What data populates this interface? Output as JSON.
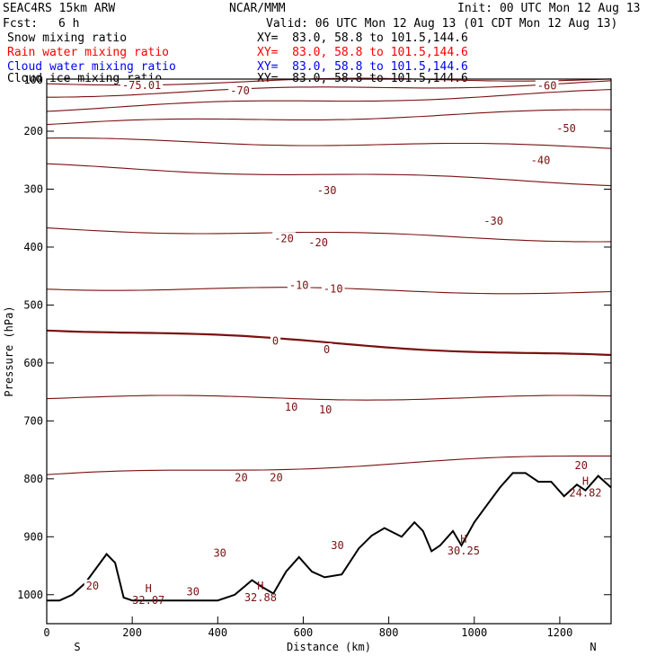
{
  "header": {
    "model": "SEAC4RS 15km ARW",
    "org": "NCAR/MMM",
    "init": "Init: 00 UTC Mon 12 Aug 13",
    "fcst_label": "Fcst:",
    "fcst_value": "6 h",
    "valid": "Valid: 06 UTC Mon 12 Aug 13 (01 CDT Mon 12 Aug 13)"
  },
  "fields": [
    {
      "name": "Snow mixing ratio",
      "xy": "XY=  83.0, 58.8 to 101.5,144.6",
      "color": "#000000"
    },
    {
      "name": "Rain water mixing ratio",
      "xy": "XY=  83.0, 58.8 to 101.5,144.6",
      "color": "#ff0000"
    },
    {
      "name": "Cloud water mixing ratio",
      "xy": "XY=  83.0, 58.8 to 101.5,144.6",
      "color": "#0000ff"
    },
    {
      "name": "Cloud ice mixing ratio",
      "xy": "XY=  83.0, 58.8 to 101.5,144.6",
      "color": "#000000"
    }
  ],
  "colors": {
    "contour": "#7a1010",
    "terrain": "#000000",
    "frame": "#000000"
  },
  "chart_data": {
    "type": "line",
    "xlabel": "Distance (km)",
    "ylabel": "Pressure (hPa)",
    "xlim": [
      0,
      1320
    ],
    "ylim": [
      1050,
      110
    ],
    "xticks": [
      0,
      200,
      400,
      600,
      800,
      1000,
      1200
    ],
    "yticks": [
      200,
      300,
      400,
      500,
      600,
      700,
      800,
      900,
      1000
    ],
    "ytick_first_label": "100",
    "end_labels": {
      "left": "S",
      "right": "N"
    },
    "temperature_contours_pressure_at_ends": [
      {
        "temp": -75.01,
        "p_start": 118,
        "p_end": 108
      },
      {
        "temp": -70,
        "p_start": 138,
        "p_end": 115
      },
      {
        "temp": -60,
        "p_start": 162,
        "p_end": 132
      },
      {
        "temp": -50,
        "p_start": 188,
        "p_end": 165
      },
      {
        "temp": -40,
        "p_start": 215,
        "p_end": 228
      },
      {
        "temp": -30,
        "p_start": 260,
        "p_end": 290
      },
      {
        "temp": -20,
        "p_start": 368,
        "p_end": 388
      },
      {
        "temp": -10,
        "p_start": 470,
        "p_end": 478
      },
      {
        "temp": 0,
        "p_start": 540,
        "p_end": 590
      },
      {
        "temp": 10,
        "p_start": 660,
        "p_end": 660
      },
      {
        "temp": 20,
        "p_start": 795,
        "p_end": 760
      }
    ],
    "contour_labels": [
      {
        "text": "-75.01",
        "x": 222,
        "p": 121
      },
      {
        "text": "-70",
        "x": 452,
        "p": 130
      },
      {
        "text": "-60",
        "x": 1170,
        "p": 122
      },
      {
        "text": "-50",
        "x": 1215,
        "p": 195
      },
      {
        "text": "-40",
        "x": 1155,
        "p": 250
      },
      {
        "text": "-30",
        "x": 655,
        "p": 302
      },
      {
        "text": "-30",
        "x": 1045,
        "p": 355
      },
      {
        "text": "-20",
        "x": 555,
        "p": 385
      },
      {
        "text": "-20",
        "x": 635,
        "p": 392
      },
      {
        "text": "-10",
        "x": 590,
        "p": 466
      },
      {
        "text": "-10",
        "x": 670,
        "p": 472
      },
      {
        "text": "0",
        "x": 535,
        "p": 562
      },
      {
        "text": "0",
        "x": 655,
        "p": 577
      },
      {
        "text": "10",
        "x": 572,
        "p": 676
      },
      {
        "text": "10",
        "x": 652,
        "p": 681
      },
      {
        "text": "20",
        "x": 455,
        "p": 798
      },
      {
        "text": "20",
        "x": 537,
        "p": 798
      },
      {
        "text": "20",
        "x": 1250,
        "p": 777
      },
      {
        "text": "30",
        "x": 405,
        "p": 928
      },
      {
        "text": "30",
        "x": 680,
        "p": 915
      },
      {
        "text": "30",
        "x": 342,
        "p": 995
      },
      {
        "text": "20",
        "x": 107,
        "p": 985
      }
    ],
    "extrema": [
      {
        "mark": "H",
        "value": "32.07",
        "x": 238,
        "p": 1005
      },
      {
        "mark": "H",
        "value": "32.88",
        "x": 500,
        "p": 1000
      },
      {
        "mark": "H",
        "value": "30.25",
        "x": 975,
        "p": 920
      },
      {
        "mark": "H",
        "value": "24.82",
        "x": 1260,
        "p": 820
      }
    ],
    "terrain_profile": {
      "x": [
        0,
        30,
        60,
        90,
        120,
        140,
        160,
        180,
        200,
        250,
        300,
        350,
        400,
        440,
        480,
        500,
        530,
        560,
        590,
        620,
        650,
        690,
        730,
        760,
        790,
        830,
        860,
        880,
        900,
        920,
        950,
        970,
        1000,
        1030,
        1060,
        1090,
        1120,
        1150,
        1180,
        1210,
        1240,
        1260,
        1290,
        1320
      ],
      "p": [
        1010,
        1010,
        1000,
        980,
        950,
        930,
        945,
        1005,
        1010,
        1010,
        1010,
        1010,
        1010,
        1000,
        975,
        985,
        998,
        960,
        935,
        960,
        970,
        965,
        920,
        898,
        885,
        900,
        875,
        890,
        925,
        915,
        890,
        915,
        875,
        845,
        815,
        790,
        790,
        805,
        805,
        830,
        810,
        820,
        795,
        815
      ]
    }
  }
}
